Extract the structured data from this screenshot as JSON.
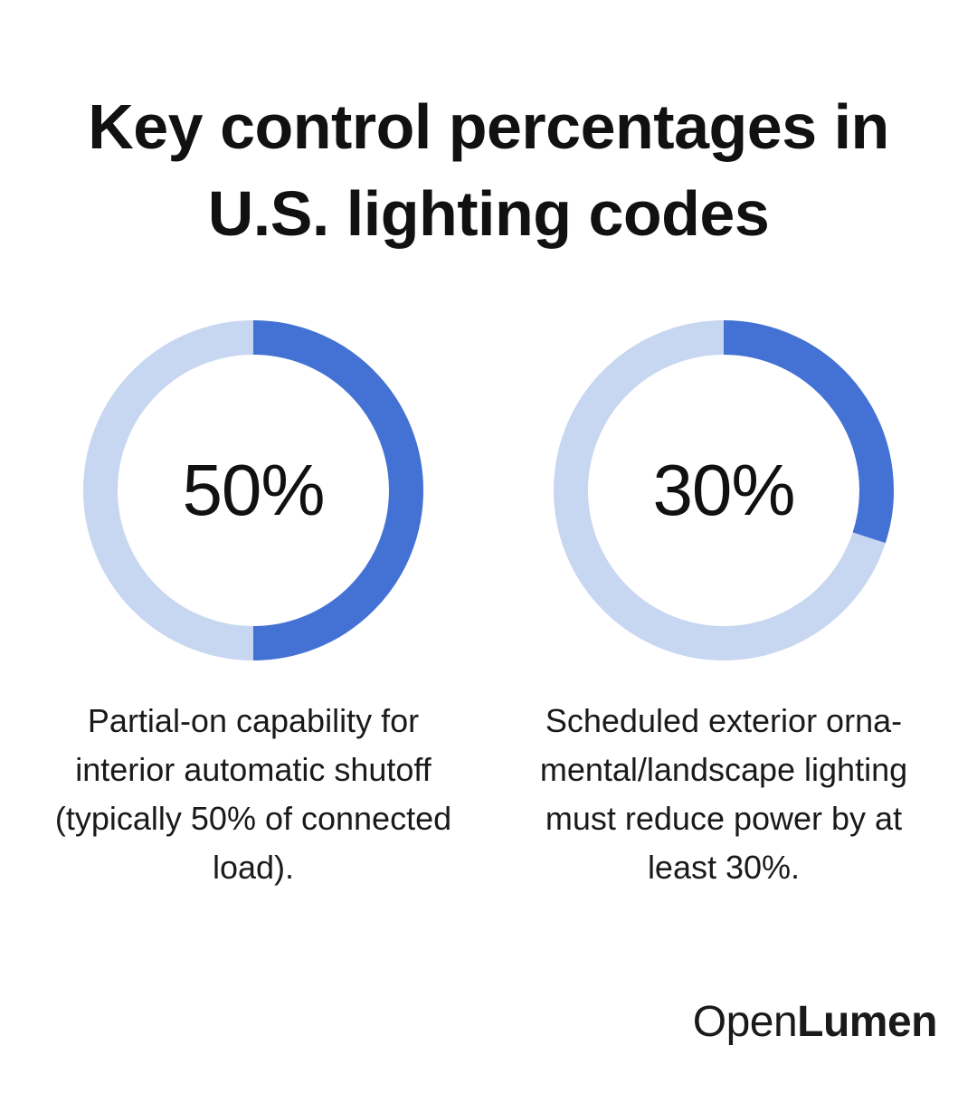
{
  "title": "Key control percentages in U.S. lighting codes",
  "colors": {
    "accent": "#4472D4",
    "track": "#C7D6F1",
    "text": "#111111"
  },
  "chart_data": [
    {
      "type": "pie",
      "value": 50,
      "label": "50%",
      "caption": "Partial-on capability for interior automatic shutoff (typically 50% of connected load)."
    },
    {
      "type": "pie",
      "value": 30,
      "label": "30%",
      "caption": "Scheduled exterior orna-mental/landscape lighting must reduce power by at least 30%."
    }
  ],
  "logo": {
    "part1": "Open",
    "part2": "Lumen"
  }
}
